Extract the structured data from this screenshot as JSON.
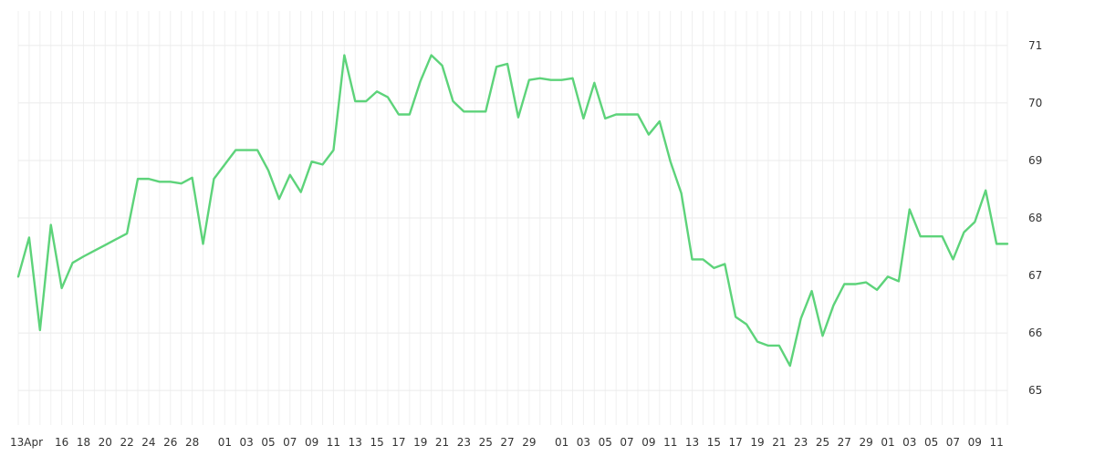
{
  "chart_data": {
    "type": "line",
    "title": "",
    "xlabel": "",
    "ylabel": "",
    "grid": true,
    "y_axis_side": "right",
    "ylim": [
      64.4,
      71.6
    ],
    "y_ticks": [
      65,
      66,
      67,
      68,
      69,
      70,
      71
    ],
    "x_tick_labels": [
      "13Apr",
      "16",
      "18",
      "20",
      "22",
      "24",
      "26",
      "28",
      "01",
      "03",
      "05",
      "07",
      "09",
      "11",
      "13",
      "15",
      "17",
      "19",
      "21",
      "23",
      "25",
      "27",
      "29",
      "01",
      "03",
      "05",
      "07",
      "09",
      "11",
      "13",
      "15",
      "17",
      "19",
      "21",
      "23",
      "25",
      "27",
      "29",
      "01",
      "03",
      "05",
      "07",
      "09",
      "11"
    ],
    "colors": {
      "series": "#5dd37a",
      "grid": "#ebebeb",
      "text": "#333333"
    },
    "series": [
      {
        "values": [
          66.98,
          67.66,
          66.05,
          67.88,
          66.78,
          67.22,
          67.33,
          67.43,
          67.53,
          67.63,
          67.73,
          68.68,
          68.68,
          68.63,
          68.63,
          68.6,
          68.7,
          67.55,
          68.68,
          68.93,
          69.18,
          69.18,
          69.18,
          68.83,
          68.33,
          68.75,
          68.45,
          68.98,
          68.93,
          69.18,
          70.83,
          70.03,
          70.03,
          70.2,
          70.1,
          69.8,
          69.8,
          70.38,
          70.83,
          70.65,
          70.03,
          69.85,
          69.85,
          69.85,
          70.63,
          70.68,
          69.75,
          70.4,
          70.43,
          70.4,
          70.4,
          70.43,
          69.73,
          70.35,
          69.73,
          69.8,
          69.8,
          69.8,
          69.45,
          69.68,
          68.98,
          68.43,
          67.28,
          67.28,
          67.13,
          67.2,
          66.28,
          66.15,
          65.85,
          65.78,
          65.78,
          65.43,
          66.25,
          66.73,
          65.95,
          66.48,
          66.85,
          66.85,
          66.88,
          66.75,
          66.98,
          66.9,
          68.15,
          67.68,
          67.68,
          67.68,
          67.28,
          67.75,
          67.93,
          68.48,
          67.55,
          67.55
        ]
      }
    ]
  }
}
